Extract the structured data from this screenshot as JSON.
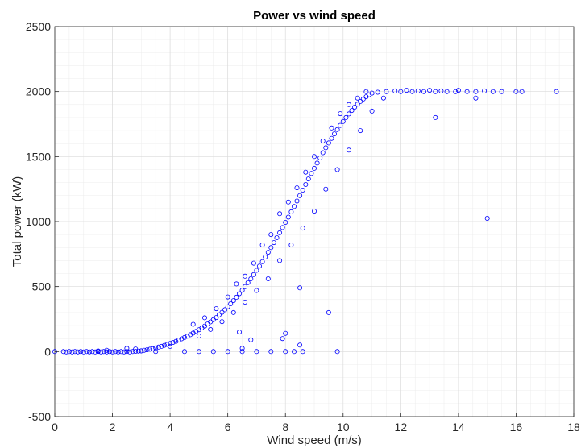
{
  "chart_data": {
    "type": "scatter",
    "title": "Power vs wind speed",
    "xlabel": "Wind speed (m/s)",
    "ylabel": "Total power (kW)",
    "xlim": [
      0,
      18
    ],
    "ylim": [
      -500,
      2500
    ],
    "xticks": [
      0,
      2,
      4,
      6,
      8,
      10,
      12,
      14,
      16,
      18
    ],
    "yticks": [
      -500,
      0,
      500,
      1000,
      1500,
      2000,
      2500
    ],
    "grid": true,
    "minor_grid": true,
    "marker": "open-circle",
    "color": "#0000ff",
    "series": [
      {
        "points": [
          [
            0.0,
            0
          ],
          [
            0.3,
            0
          ],
          [
            0.4,
            -2
          ],
          [
            0.5,
            0
          ],
          [
            0.6,
            -3
          ],
          [
            0.7,
            0
          ],
          [
            0.8,
            -2
          ],
          [
            0.9,
            0
          ],
          [
            1.0,
            -3
          ],
          [
            1.1,
            0
          ],
          [
            1.2,
            -2
          ],
          [
            1.3,
            0
          ],
          [
            1.4,
            -3
          ],
          [
            1.5,
            0
          ],
          [
            1.6,
            -2
          ],
          [
            1.7,
            0
          ],
          [
            1.8,
            -3
          ],
          [
            1.9,
            0
          ],
          [
            2.0,
            -2
          ],
          [
            2.1,
            0
          ],
          [
            2.2,
            -3
          ],
          [
            2.3,
            0
          ],
          [
            2.4,
            -2
          ],
          [
            2.5,
            0
          ],
          [
            2.6,
            -3
          ],
          [
            2.7,
            0
          ],
          [
            2.8,
            2
          ],
          [
            2.9,
            4
          ],
          [
            3.0,
            6
          ],
          [
            3.1,
            10
          ],
          [
            3.2,
            14
          ],
          [
            3.3,
            18
          ],
          [
            3.4,
            22
          ],
          [
            3.5,
            28
          ],
          [
            3.6,
            34
          ],
          [
            3.7,
            40
          ],
          [
            3.8,
            48
          ],
          [
            3.9,
            55
          ],
          [
            4.0,
            62
          ],
          [
            4.1,
            70
          ],
          [
            4.2,
            78
          ],
          [
            4.3,
            88
          ],
          [
            4.4,
            98
          ],
          [
            4.5,
            108
          ],
          [
            4.6,
            118
          ],
          [
            4.7,
            130
          ],
          [
            4.8,
            142
          ],
          [
            4.9,
            155
          ],
          [
            5.0,
            168
          ],
          [
            5.1,
            182
          ],
          [
            5.2,
            196
          ],
          [
            5.3,
            212
          ],
          [
            5.4,
            228
          ],
          [
            5.5,
            245
          ],
          [
            5.6,
            262
          ],
          [
            5.7,
            282
          ],
          [
            5.8,
            302
          ],
          [
            5.9,
            322
          ],
          [
            6.0,
            345
          ],
          [
            6.1,
            368
          ],
          [
            6.2,
            392
          ],
          [
            6.3,
            418
          ],
          [
            6.4,
            445
          ],
          [
            6.5,
            472
          ],
          [
            6.6,
            500
          ],
          [
            6.7,
            530
          ],
          [
            6.8,
            560
          ],
          [
            6.9,
            592
          ],
          [
            7.0,
            625
          ],
          [
            7.1,
            658
          ],
          [
            7.2,
            692
          ],
          [
            7.3,
            728
          ],
          [
            7.4,
            764
          ],
          [
            7.5,
            800
          ],
          [
            7.6,
            838
          ],
          [
            7.7,
            876
          ],
          [
            7.8,
            914
          ],
          [
            7.9,
            954
          ],
          [
            8.0,
            994
          ],
          [
            8.1,
            1034
          ],
          [
            8.2,
            1075
          ],
          [
            8.3,
            1116
          ],
          [
            8.4,
            1158
          ],
          [
            8.5,
            1200
          ],
          [
            8.6,
            1242
          ],
          [
            8.7,
            1285
          ],
          [
            8.8,
            1328
          ],
          [
            8.9,
            1370
          ],
          [
            9.0,
            1410
          ],
          [
            9.1,
            1450
          ],
          [
            9.2,
            1490
          ],
          [
            9.3,
            1530
          ],
          [
            9.4,
            1568
          ],
          [
            9.5,
            1605
          ],
          [
            9.6,
            1640
          ],
          [
            9.7,
            1675
          ],
          [
            9.8,
            1708
          ],
          [
            9.9,
            1740
          ],
          [
            10.0,
            1770
          ],
          [
            10.1,
            1800
          ],
          [
            10.2,
            1828
          ],
          [
            10.3,
            1855
          ],
          [
            10.4,
            1880
          ],
          [
            10.5,
            1903
          ],
          [
            10.6,
            1924
          ],
          [
            10.7,
            1943
          ],
          [
            10.8,
            1960
          ],
          [
            10.9,
            1975
          ],
          [
            11.0,
            1988
          ],
          [
            11.2,
            1995
          ],
          [
            11.5,
            2000
          ],
          [
            11.8,
            2005
          ],
          [
            12.0,
            2000
          ],
          [
            12.2,
            2010
          ],
          [
            12.4,
            2000
          ],
          [
            12.6,
            2005
          ],
          [
            12.8,
            2000
          ],
          [
            13.0,
            2010
          ],
          [
            13.2,
            2000
          ],
          [
            13.4,
            2005
          ],
          [
            13.6,
            2000
          ],
          [
            13.9,
            2000
          ],
          [
            14.0,
            2010
          ],
          [
            14.3,
            2000
          ],
          [
            14.6,
            2000
          ],
          [
            14.9,
            2005
          ],
          [
            15.2,
            2000
          ],
          [
            15.5,
            2000
          ],
          [
            16.0,
            2000
          ],
          [
            16.2,
            2000
          ],
          [
            17.4,
            2000
          ],
          [
            15.0,
            1025
          ],
          [
            13.2,
            1800
          ],
          [
            14.6,
            1950
          ],
          [
            9.5,
            300
          ],
          [
            9.8,
            0
          ],
          [
            8.5,
            490
          ],
          [
            8.0,
            140
          ],
          [
            7.9,
            100
          ],
          [
            6.4,
            150
          ],
          [
            6.5,
            25
          ],
          [
            6.8,
            90
          ],
          [
            8.5,
            50
          ],
          [
            2.5,
            25
          ],
          [
            3.0,
            5
          ],
          [
            2.8,
            20
          ],
          [
            1.5,
            5
          ],
          [
            1.8,
            10
          ],
          [
            4.0,
            40
          ],
          [
            5.0,
            0
          ],
          [
            5.5,
            0
          ],
          [
            6.0,
            0
          ],
          [
            6.5,
            0
          ],
          [
            7.0,
            0
          ],
          [
            7.5,
            0
          ],
          [
            8.0,
            0
          ],
          [
            8.3,
            0
          ],
          [
            8.6,
            0
          ],
          [
            3.5,
            0
          ],
          [
            4.5,
            0
          ],
          [
            4.8,
            210
          ],
          [
            5.2,
            260
          ],
          [
            5.6,
            330
          ],
          [
            6.0,
            420
          ],
          [
            6.3,
            520
          ],
          [
            6.6,
            580
          ],
          [
            6.9,
            680
          ],
          [
            7.2,
            820
          ],
          [
            7.5,
            900
          ],
          [
            7.8,
            1060
          ],
          [
            8.1,
            1150
          ],
          [
            8.4,
            1260
          ],
          [
            8.7,
            1380
          ],
          [
            9.0,
            1500
          ],
          [
            9.3,
            1620
          ],
          [
            9.6,
            1720
          ],
          [
            9.9,
            1830
          ],
          [
            10.2,
            1900
          ],
          [
            10.5,
            1950
          ],
          [
            10.8,
            2000
          ],
          [
            5.0,
            120
          ],
          [
            5.4,
            170
          ],
          [
            5.8,
            230
          ],
          [
            6.2,
            300
          ],
          [
            6.6,
            380
          ],
          [
            7.0,
            470
          ],
          [
            7.4,
            560
          ],
          [
            7.8,
            700
          ],
          [
            8.2,
            820
          ],
          [
            8.6,
            950
          ],
          [
            9.0,
            1080
          ],
          [
            9.4,
            1250
          ],
          [
            9.8,
            1400
          ],
          [
            10.2,
            1550
          ],
          [
            10.6,
            1700
          ],
          [
            11.0,
            1850
          ],
          [
            11.4,
            1950
          ]
        ]
      }
    ]
  }
}
